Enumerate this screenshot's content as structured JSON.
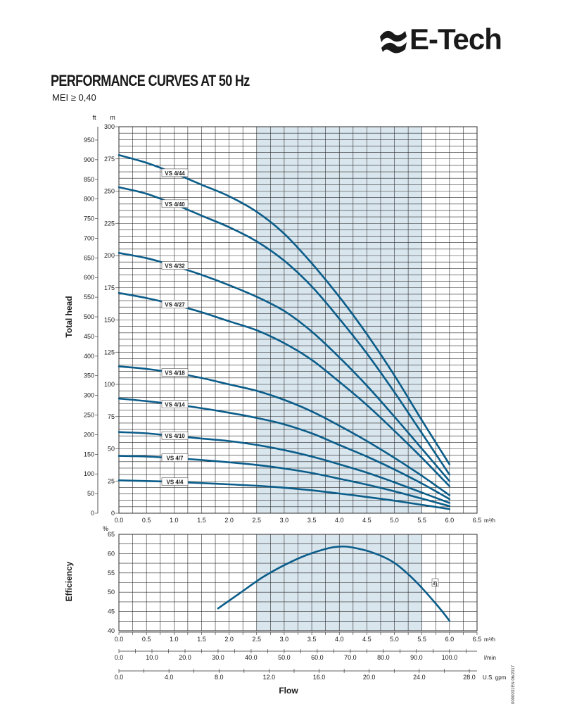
{
  "brand": {
    "name": "E-Tech"
  },
  "header": {
    "title": "PERFORMANCE CURVES AT 50 Hz",
    "subtitle": "MEI ≥ 0,40"
  },
  "doc_code": "0000031EN 06/2017",
  "colors": {
    "curve": "#0b5d8a",
    "band": "#d9e6ee",
    "grid": "#2b2b2b"
  },
  "chart_data": [
    {
      "type": "line",
      "title": "",
      "xlabel": "",
      "ylabel": "Total head",
      "x_unit": "m³/h",
      "y_unit": "m",
      "y2_unit": "ft",
      "xlim": [
        0,
        6.5
      ],
      "ylim": [
        0,
        300
      ],
      "y2lim": [
        0,
        984
      ],
      "x_ticks": [
        "0.0",
        "0.5",
        "1.0",
        "1.5",
        "2.0",
        "2.5",
        "3.0",
        "3.5",
        "4.0",
        "4.5",
        "5.0",
        "5.5",
        "6.0",
        "6.5"
      ],
      "y_ticks": [
        "0",
        "25",
        "50",
        "75",
        "100",
        "125",
        "150",
        "175",
        "200",
        "225",
        "250",
        "275",
        "300"
      ],
      "y2_ticks": [
        "0",
        "50",
        "100",
        "150",
        "200",
        "250",
        "300",
        "350",
        "400",
        "450",
        "500",
        "550",
        "600",
        "650",
        "700",
        "750",
        "800",
        "850",
        "900",
        "950"
      ],
      "grid": true,
      "shaded_band": [
        2.5,
        5.5
      ],
      "series": [
        {
          "name": "VS 4/44",
          "x": [
            0,
            0.5,
            1,
            1.5,
            2,
            2.5,
            3,
            3.5,
            4,
            4.5,
            5,
            5.5,
            6
          ],
          "y": [
            278,
            272,
            264,
            255,
            246,
            234,
            217,
            194,
            168,
            139,
            107,
            72,
            38
          ]
        },
        {
          "name": "VS 4/40",
          "x": [
            0,
            0.5,
            1,
            1.5,
            2,
            2.5,
            3,
            3.5,
            4,
            4.5,
            5,
            5.5,
            6
          ],
          "y": [
            253,
            248,
            240,
            231,
            222,
            211,
            196,
            176,
            151,
            124,
            94,
            62,
            30
          ]
        },
        {
          "name": "VS 4/32",
          "x": [
            0,
            0.5,
            1,
            1.5,
            2,
            2.5,
            3,
            3.5,
            4,
            4.5,
            5,
            5.5,
            6
          ],
          "y": [
            202,
            198,
            192,
            185,
            177,
            168,
            157,
            141,
            121,
            99,
            75,
            50,
            25
          ]
        },
        {
          "name": "VS 4/27",
          "x": [
            0,
            0.5,
            1,
            1.5,
            2,
            2.5,
            3,
            3.5,
            4,
            4.5,
            5,
            5.5,
            6
          ],
          "y": [
            171,
            167,
            162,
            156,
            149,
            142,
            132,
            119,
            102,
            84,
            64,
            43,
            21
          ]
        },
        {
          "name": "VS 4/18",
          "x": [
            0,
            0.5,
            1,
            1.5,
            2,
            2.5,
            3,
            3.5,
            4,
            4.5,
            5,
            5.5,
            6
          ],
          "y": [
            114,
            112,
            109,
            105,
            100,
            95,
            88,
            79,
            68,
            56,
            43,
            29,
            14
          ]
        },
        {
          "name": "VS 4/14",
          "x": [
            0,
            0.5,
            1,
            1.5,
            2,
            2.5,
            3,
            3.5,
            4,
            4.5,
            5,
            5.5,
            6
          ],
          "y": [
            89,
            87,
            84.5,
            81.5,
            78,
            74,
            69,
            62,
            53,
            44,
            34,
            23,
            11
          ]
        },
        {
          "name": "VS 4/10",
          "x": [
            0,
            0.5,
            1,
            1.5,
            2,
            2.5,
            3,
            3.5,
            4,
            4.5,
            5,
            5.5,
            6
          ],
          "y": [
            63,
            62,
            60,
            58,
            56,
            53,
            49,
            44,
            38,
            31.5,
            24,
            16,
            8
          ]
        },
        {
          "name": "VS 4/7",
          "x": [
            0,
            0.5,
            1,
            1.5,
            2,
            2.5,
            3,
            3.5,
            4,
            4.5,
            5,
            5.5,
            6
          ],
          "y": [
            44.5,
            44,
            42.8,
            41.3,
            39.5,
            37.5,
            34.7,
            31.2,
            26.8,
            22.2,
            17,
            11.3,
            5.5
          ]
        },
        {
          "name": "VS 4/4",
          "x": [
            0,
            0.5,
            1,
            1.5,
            2,
            2.5,
            3,
            3.5,
            4,
            4.5,
            5,
            5.5,
            6
          ],
          "y": [
            25.5,
            25,
            24.3,
            23.4,
            22.4,
            21.3,
            19.8,
            17.8,
            15.3,
            12.6,
            9.7,
            6.5,
            3.2
          ]
        }
      ]
    },
    {
      "type": "line",
      "title": "",
      "ylabel": "Efficiency",
      "xlabel": "Flow",
      "x_unit": "m³/h",
      "y_unit": "%",
      "xlim": [
        0,
        6.5
      ],
      "ylim": [
        40,
        65
      ],
      "x_ticks": [
        "0.0",
        "0.5",
        "1.0",
        "1.5",
        "2.0",
        "2.5",
        "3.0",
        "3.5",
        "4.0",
        "4.5",
        "5.0",
        "5.5",
        "6.0",
        "6.5"
      ],
      "y_ticks": [
        "40",
        "45",
        "50",
        "55",
        "60",
        "65"
      ],
      "grid": true,
      "shaded_band": [
        2.5,
        5.5
      ],
      "series": [
        {
          "name": "η",
          "x": [
            1.8,
            2.2,
            2.6,
            3.0,
            3.4,
            3.8,
            4.0,
            4.2,
            4.6,
            5.0,
            5.4,
            5.8,
            6.0
          ],
          "y": [
            45.8,
            49.8,
            53.8,
            57.0,
            59.6,
            61.4,
            61.8,
            61.7,
            60.3,
            57.6,
            52.6,
            46.2,
            42.6
          ]
        }
      ]
    }
  ],
  "secondary_axes": [
    {
      "unit": "l/min",
      "max": 108.333,
      "labels": [
        "0.0",
        "10.0",
        "20.0",
        "30.0",
        "40.0",
        "50.0",
        "60.0",
        "70.0",
        "80.0",
        "90.0",
        "100.0"
      ]
    },
    {
      "unit": "U.S. gpm",
      "max": 28.62,
      "labels": [
        "0.0",
        "4.0",
        "8.0",
        "12.0",
        "16.0",
        "20.0",
        "24.0",
        "28.0"
      ]
    }
  ]
}
